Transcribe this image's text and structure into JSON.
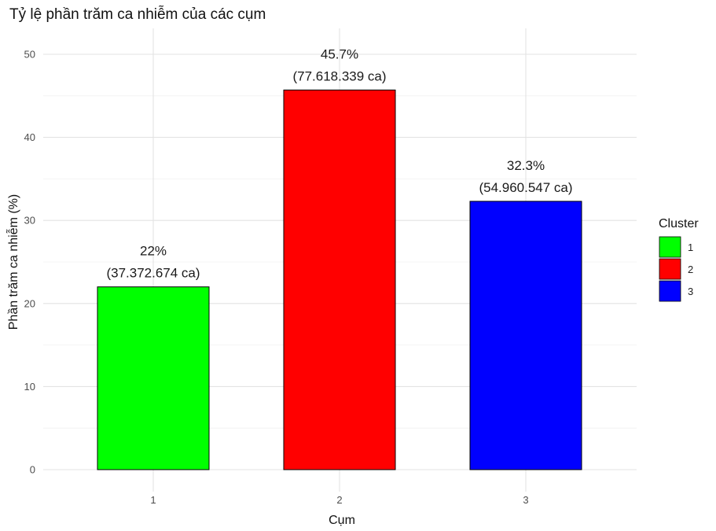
{
  "chart_data": {
    "type": "bar",
    "title": "Tỷ lệ phần trăm ca nhiễm của các cụm",
    "xlabel": "Cụm",
    "ylabel": "Phần trăm ca nhiễm (%)",
    "categories": [
      "1",
      "2",
      "3"
    ],
    "values": [
      22,
      45.7,
      32.3
    ],
    "bar_labels": [
      [
        "22%",
        "(37.372.674 ca)"
      ],
      [
        "45.7%",
        "(77.618.339 ca)"
      ],
      [
        "32.3%",
        "(54.960.547 ca)"
      ]
    ],
    "ylim": [
      0,
      50
    ],
    "yticks": [
      0,
      10,
      20,
      30,
      40,
      50
    ],
    "grid": true,
    "legend": {
      "title": "Cluster",
      "placement": "right",
      "entries": [
        "1",
        "2",
        "3"
      ]
    },
    "colors": [
      "#00ff00",
      "#ff0000",
      "#0000ff"
    ]
  }
}
